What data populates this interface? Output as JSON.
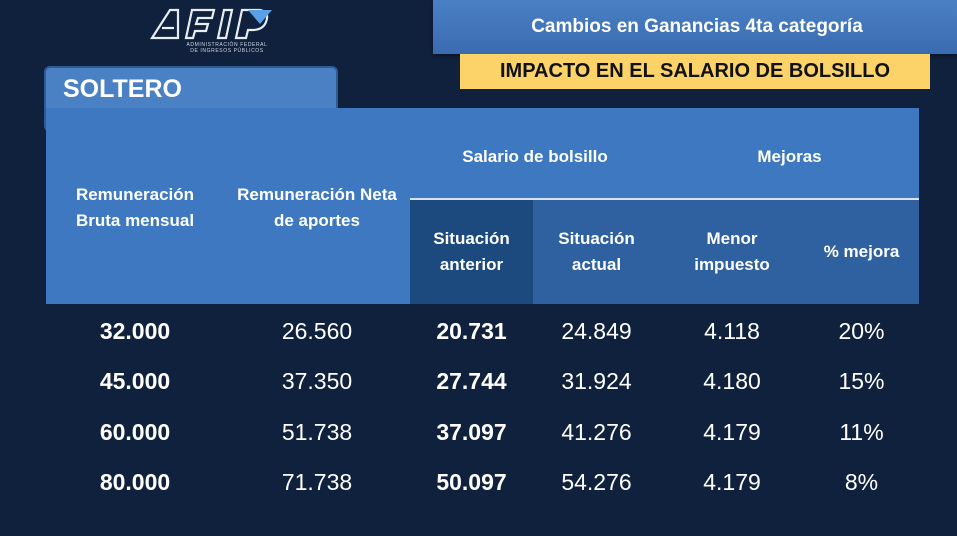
{
  "logo": {
    "name": "AFIP",
    "subtitle_line1": "ADMINISTRACIÓN FEDERAL",
    "subtitle_line2": "DE INGRESOS PÚBLICOS"
  },
  "header": {
    "title": "Cambios en Ganancias 4ta categoría",
    "impact": "IMPACTO EN EL SALARIO DE BOLSILLO"
  },
  "category": "SOLTERO",
  "table": {
    "col_bruta": "Remuneración Bruta mensual",
    "col_neta": "Remuneración Neta de aportes",
    "group_salario": "Salario de bolsillo",
    "group_mejoras": "Mejoras",
    "col_anterior": "Situación anterior",
    "col_actual": "Situación actual",
    "col_menor": "Menor impuesto",
    "col_pct": "% mejora",
    "rows": [
      {
        "bruta": "32.000",
        "neta": "26.560",
        "anterior": "20.731",
        "actual": "24.849",
        "menor": "4.118",
        "pct": "20%"
      },
      {
        "bruta": "45.000",
        "neta": "37.350",
        "anterior": "27.744",
        "actual": "31.924",
        "menor": "4.180",
        "pct": "15%"
      },
      {
        "bruta": "60.000",
        "neta": "51.738",
        "anterior": "37.097",
        "actual": "41.276",
        "menor": "4.179",
        "pct": "11%"
      },
      {
        "bruta": "80.000",
        "neta": "71.738",
        "anterior": "50.097",
        "actual": "54.276",
        "menor": "4.179",
        "pct": "8%"
      }
    ]
  },
  "colors": {
    "background": "#10213d",
    "header_blue": "#3d78c0",
    "header_dark": "#1d4a7e",
    "header_mid": "#2f609f",
    "impact_yellow": "#fcd369"
  }
}
